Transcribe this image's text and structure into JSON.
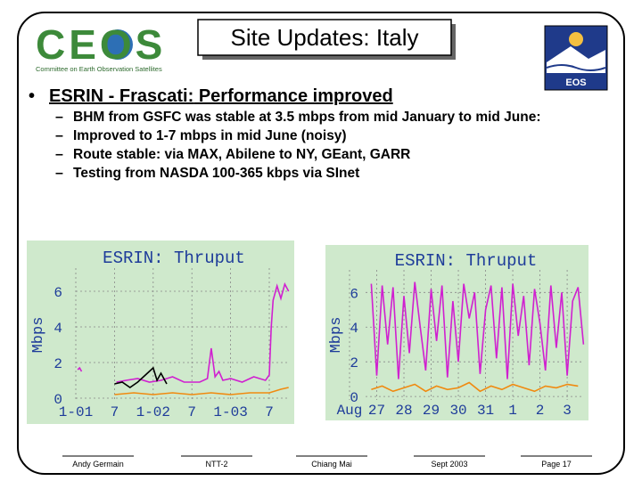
{
  "header": {
    "title": "Site Updates: Italy",
    "logo_text": "CEOS",
    "logo_subtitle": "Committee on Earth Observation Satellites",
    "right_logo_text": "EOS"
  },
  "bullet": {
    "heading": "ESRIN - Frascati:",
    "text": " Performance improved",
    "items": [
      "BHM from GSFC was stable at 3.5 mbps from mid January to mid June:",
      "Improved to 1-7 mbps in mid June (noisy)",
      "Route stable: via MAX, Abilene to NY, GEant, GARR",
      "Testing from NASDA 100-365 kbps via SInet"
    ]
  },
  "footer": [
    "Andy Germain",
    "NTT-2",
    "Chiang Mai",
    "Sept 2003",
    "Page 17"
  ],
  "chart_data": [
    {
      "type": "line",
      "title": "ESRIN: Thruput",
      "y_label": "Mbps",
      "grid": true,
      "xlim": [
        0,
        5.53
      ],
      "ylim": [
        -0.2,
        7.3
      ],
      "yticks": [
        0,
        2,
        4,
        6
      ],
      "xticks": [
        {
          "value": 0,
          "label": "1-01"
        },
        {
          "value": 1,
          "label": "7"
        },
        {
          "value": 2,
          "label": "1-02"
        },
        {
          "value": 3,
          "label": "7"
        },
        {
          "value": 4,
          "label": "1-03"
        },
        {
          "value": 5,
          "label": "7"
        }
      ],
      "series": [
        {
          "color": "#d020d0",
          "x": [
            0.05,
            0.1,
            0.15,
            0.5,
            1.05,
            1.3,
            1.6,
            1.9,
            2.2,
            2.5,
            2.8,
            3.2,
            3.4,
            3.5,
            3.6,
            3.7,
            3.8,
            4.0,
            4.3,
            4.6,
            4.9,
            5.0,
            5.05,
            5.1,
            5.2,
            5.3,
            5.4,
            5.5
          ],
          "values": [
            1.6,
            1.7,
            1.5,
            null,
            0.9,
            1.0,
            1.1,
            0.9,
            1.0,
            1.2,
            0.9,
            0.9,
            1.1,
            2.8,
            1.2,
            1.5,
            1.0,
            1.1,
            0.9,
            1.2,
            1.0,
            1.3,
            4.0,
            5.5,
            6.3,
            5.6,
            6.4,
            6.0
          ]
        },
        {
          "color": "#f08a10",
          "x": [
            1.0,
            1.5,
            2.0,
            2.5,
            3.0,
            3.5,
            4.0,
            4.5,
            5.0,
            5.3,
            5.5
          ],
          "values": [
            0.2,
            0.3,
            0.2,
            0.3,
            0.2,
            0.3,
            0.2,
            0.3,
            0.3,
            0.5,
            0.6
          ]
        },
        {
          "color": "#000000",
          "x": [
            1.0,
            1.2,
            1.4,
            1.6,
            1.8,
            2.0,
            2.1,
            2.2,
            2.35
          ],
          "values": [
            0.8,
            0.9,
            0.6,
            0.9,
            1.3,
            1.7,
            1.0,
            1.4,
            0.8
          ]
        }
      ]
    },
    {
      "type": "line",
      "title": "ESRIN: Thruput",
      "y_label": "Mbps",
      "grid": true,
      "xlim": [
        0.59,
        8.62
      ],
      "ylim": [
        -0.2,
        7.3
      ],
      "yticks": [
        0,
        2,
        4,
        6
      ],
      "xticks": [
        {
          "value": 0,
          "label": "Aug"
        },
        {
          "value": 1,
          "label": "27"
        },
        {
          "value": 2,
          "label": "28"
        },
        {
          "value": 3,
          "label": "29"
        },
        {
          "value": 4,
          "label": "30"
        },
        {
          "value": 5,
          "label": "31"
        },
        {
          "value": 6,
          "label": "1"
        },
        {
          "value": 7,
          "label": "2"
        },
        {
          "value": 8,
          "label": "3"
        }
      ],
      "series": [
        {
          "color": "#d020d0",
          "x": [
            0.8,
            1.0,
            1.2,
            1.4,
            1.6,
            1.8,
            2.0,
            2.2,
            2.4,
            2.6,
            2.8,
            3.0,
            3.2,
            3.4,
            3.6,
            3.8,
            4.0,
            4.2,
            4.4,
            4.6,
            4.8,
            5.0,
            5.2,
            5.4,
            5.6,
            5.8,
            6.0,
            6.2,
            6.4,
            6.6,
            6.8,
            7.0,
            7.2,
            7.4,
            7.6,
            7.8,
            8.0,
            8.2,
            8.4,
            8.6
          ],
          "values": [
            6.5,
            1.2,
            6.4,
            3.0,
            6.3,
            1.0,
            5.8,
            2.5,
            6.6,
            4.0,
            1.5,
            6.2,
            3.2,
            6.4,
            1.1,
            5.5,
            2.0,
            6.5,
            4.5,
            6.0,
            1.3,
            5.0,
            6.4,
            2.2,
            6.3,
            1.0,
            6.5,
            3.5,
            5.8,
            1.8,
            6.2,
            4.2,
            1.5,
            6.4,
            2.8,
            6.0,
            1.2,
            5.5,
            6.3,
            3.0
          ]
        },
        {
          "color": "#f08a10",
          "x": [
            0.8,
            1.2,
            1.6,
            2.0,
            2.4,
            2.8,
            3.2,
            3.6,
            4.0,
            4.4,
            4.8,
            5.2,
            5.6,
            6.0,
            6.4,
            6.8,
            7.2,
            7.6,
            8.0,
            8.4
          ],
          "values": [
            0.4,
            0.6,
            0.3,
            0.5,
            0.7,
            0.3,
            0.6,
            0.4,
            0.5,
            0.8,
            0.3,
            0.6,
            0.4,
            0.7,
            0.5,
            0.3,
            0.6,
            0.5,
            0.7,
            0.6
          ]
        }
      ]
    }
  ]
}
